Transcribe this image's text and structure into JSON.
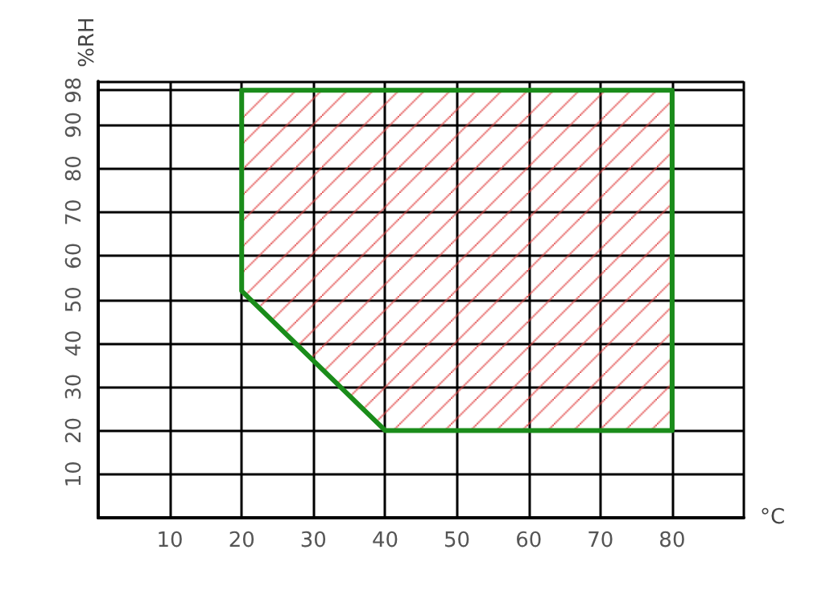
{
  "chart_data": {
    "type": "area",
    "xlabel": "°C",
    "ylabel": "%RH",
    "xlim": [
      0,
      90
    ],
    "ylim": [
      0,
      100
    ],
    "xticks": [
      {
        "value": 0,
        "label": null
      },
      10,
      20,
      30,
      40,
      50,
      60,
      70,
      80,
      {
        "value": 90,
        "label": null
      }
    ],
    "yticks": [
      {
        "value": 0,
        "label": null
      },
      10,
      20,
      30,
      40,
      50,
      60,
      70,
      80,
      90,
      98,
      {
        "value": 100,
        "label": null
      }
    ],
    "grid": true,
    "series": [
      {
        "color": "#1a8c1a",
        "x": [
          20,
          20,
          80,
          80,
          40,
          20
        ],
        "values": [
          52,
          98,
          98,
          20,
          20,
          52
        ]
      }
    ]
  }
}
